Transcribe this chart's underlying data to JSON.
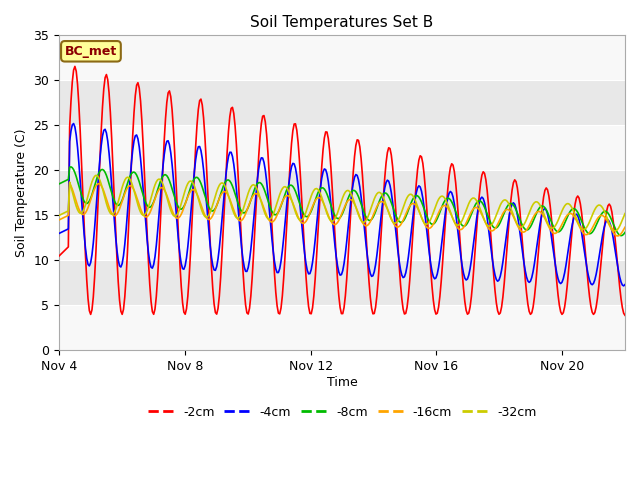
{
  "title": "Soil Temperatures Set B",
  "xlabel": "Time",
  "ylabel": "Soil Temperature (C)",
  "ylim": [
    0,
    35
  ],
  "yticks": [
    0,
    5,
    10,
    15,
    20,
    25,
    30,
    35
  ],
  "xtick_labels": [
    "Nov 4",
    "Nov 8",
    "Nov 12",
    "Nov 16",
    "Nov 20"
  ],
  "xtick_positions": [
    0,
    4,
    8,
    12,
    16
  ],
  "xlim": [
    0,
    18
  ],
  "annotation_text": "BC_met",
  "annotation_color": "#8B0000",
  "annotation_bg": "#FFFF99",
  "annotation_border": "#8B6914",
  "line_colors": {
    "-2cm": "#FF0000",
    "-4cm": "#0000FF",
    "-8cm": "#00BB00",
    "-16cm": "#FFA500",
    "-32cm": "#CCCC00"
  },
  "line_width": 1.2,
  "fig_bg": "#FFFFFF",
  "plot_bg": "#FFFFFF",
  "band_dark": "#E8E8E8",
  "band_light": "#F8F8F8",
  "n_points": 432
}
